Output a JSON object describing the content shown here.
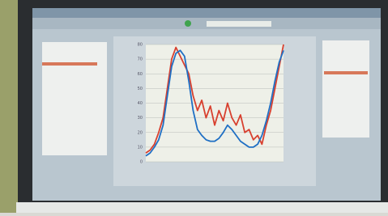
{
  "chart_data": {
    "type": "line",
    "series": [
      {
        "color": "#1f6fc4",
        "values": [
          4,
          6,
          10,
          15,
          25,
          45,
          65,
          74,
          76,
          72,
          55,
          35,
          22,
          18,
          15,
          14,
          14,
          16,
          20,
          25,
          22,
          18,
          14,
          12,
          10,
          10,
          12,
          18,
          28,
          40,
          55,
          68,
          76
        ]
      },
      {
        "color": "#d8402f",
        "values": [
          6,
          8,
          12,
          20,
          30,
          50,
          70,
          78,
          72,
          66,
          60,
          45,
          35,
          42,
          30,
          38,
          25,
          35,
          28,
          40,
          30,
          25,
          32,
          20,
          22,
          15,
          18,
          12,
          25,
          35,
          50,
          65,
          80
        ]
      }
    ],
    "ylim": [
      0,
      80
    ],
    "yticks": [
      0,
      10,
      20,
      30,
      40,
      50,
      60,
      70,
      80
    ],
    "grid": true
  }
}
